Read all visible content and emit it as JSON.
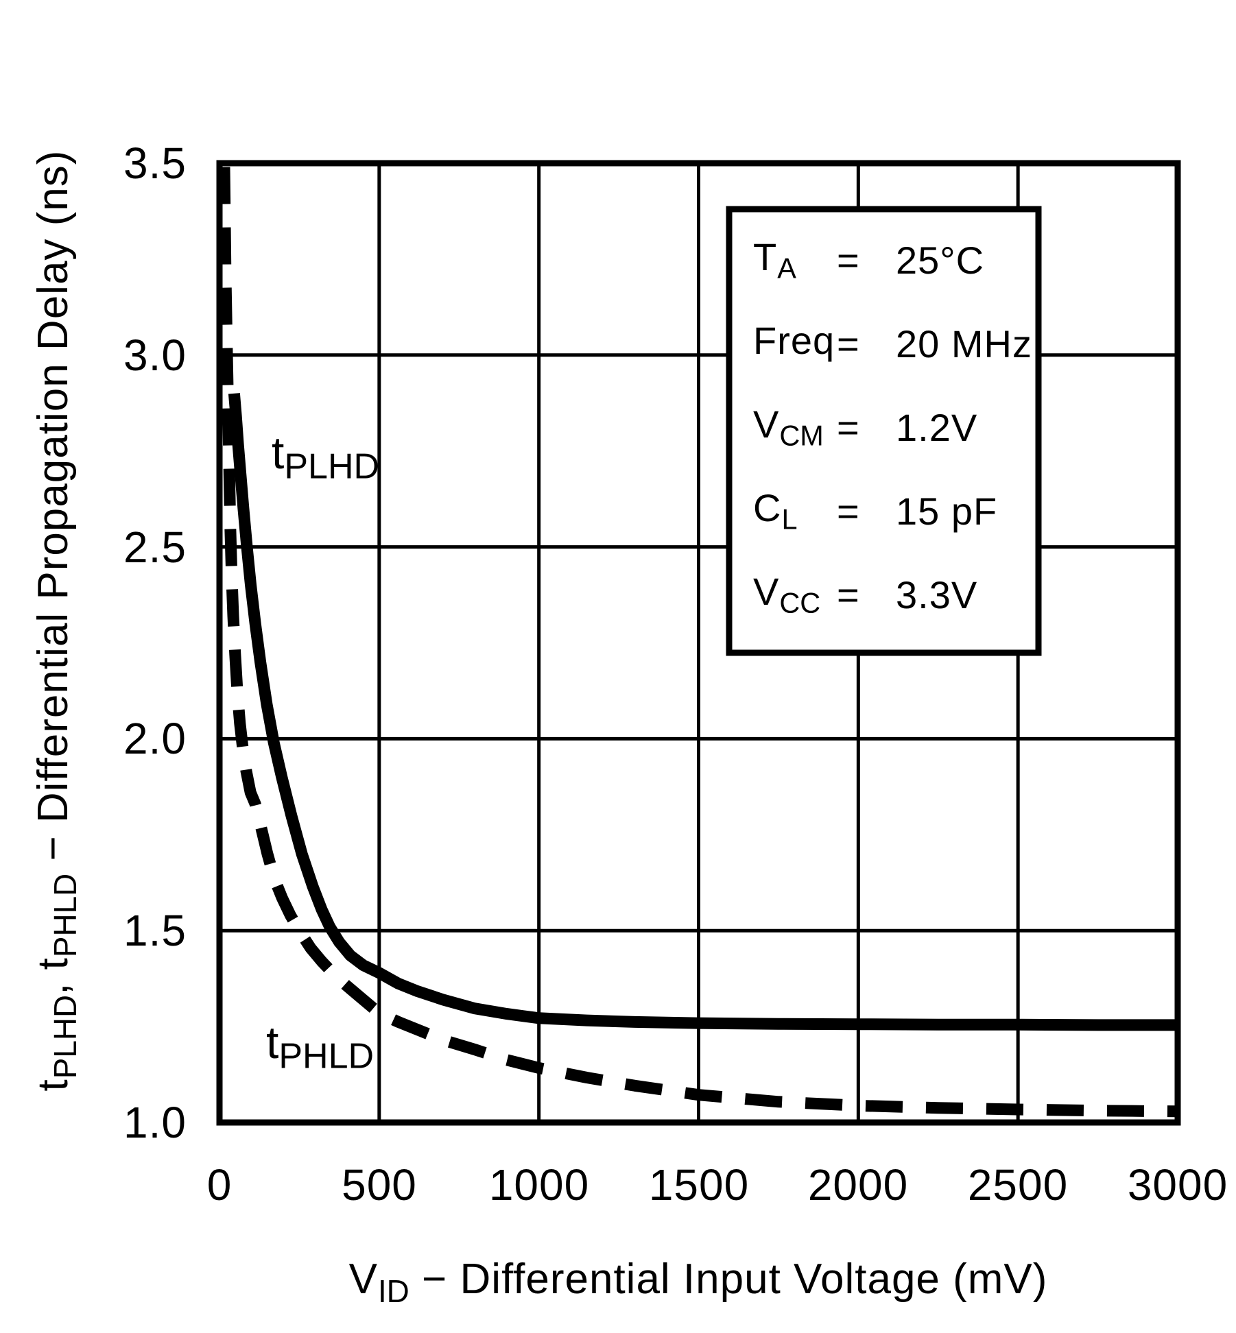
{
  "page": {
    "background": "#ffffff",
    "ink": "#000000"
  },
  "figure": {
    "y_axis": {
      "title": {
        "t1": "t",
        "s1": "PLHD",
        "mid": ", ",
        "t2": "t",
        "s2": "PHLD",
        "rest": " − Differential Propagation Delay (ns)"
      },
      "tick_labels": [
        "3.5",
        "3.0",
        "2.5",
        "2.0",
        "1.5",
        "1.0"
      ]
    },
    "x_axis": {
      "title": {
        "t1": "V",
        "s1": "ID",
        "rest": " − Differential Input Voltage (mV)"
      },
      "tick_labels": [
        "0",
        "500",
        "1000",
        "1500",
        "2000",
        "2500",
        "3000"
      ]
    },
    "curve_labels": [
      {
        "main": "t",
        "sub": "PLHD"
      },
      {
        "main": "t",
        "sub": "PHLD"
      }
    ],
    "conditions": [
      {
        "sym": "T",
        "sub": "A",
        "eq": "=",
        "val": "25°C"
      },
      {
        "sym": "Freq",
        "sub": "",
        "eq": "=",
        "val": "20 MHz"
      },
      {
        "sym": "V",
        "sub": "CM",
        "eq": "=",
        "val": "1.2V"
      },
      {
        "sym": "C",
        "sub": "L",
        "eq": "=",
        "val": "15 pF"
      },
      {
        "sym": "V",
        "sub": "CC",
        "eq": "=",
        "val": "3.3V"
      }
    ]
  },
  "chart_data": {
    "type": "line",
    "title": "",
    "xlabel": "VID − Differential Input Voltage (mV)",
    "ylabel": "tPLHD, tPHLD − Differential Propagation Delay (ns)",
    "xlim": [
      0,
      3000
    ],
    "ylim": [
      1.0,
      3.5
    ],
    "x_ticks": [
      0,
      500,
      1000,
      1500,
      2000,
      2500,
      3000
    ],
    "y_ticks": [
      1.0,
      1.5,
      2.0,
      2.5,
      3.0,
      3.5
    ],
    "grid": true,
    "legend_position": "on-curve",
    "conditions_note": [
      "TA = 25°C",
      "Freq = 20 MHz",
      "VCM = 1.2V",
      "CL = 15 pF",
      "VCC = 3.3V"
    ],
    "series": [
      {
        "name": "tPLHD",
        "line_style": "solid",
        "points": [
          [
            46,
            2.9
          ],
          [
            52,
            2.84
          ],
          [
            58,
            2.77
          ],
          [
            66,
            2.69
          ],
          [
            75,
            2.6
          ],
          [
            86,
            2.5
          ],
          [
            98,
            2.4
          ],
          [
            112,
            2.3
          ],
          [
            128,
            2.2
          ],
          [
            148,
            2.09
          ],
          [
            170,
            1.99
          ],
          [
            195,
            1.9
          ],
          [
            225,
            1.8
          ],
          [
            258,
            1.7
          ],
          [
            292,
            1.615
          ],
          [
            320,
            1.555
          ],
          [
            345,
            1.51
          ],
          [
            375,
            1.47
          ],
          [
            410,
            1.435
          ],
          [
            450,
            1.41
          ],
          [
            500,
            1.39
          ],
          [
            560,
            1.362
          ],
          [
            620,
            1.342
          ],
          [
            700,
            1.32
          ],
          [
            800,
            1.297
          ],
          [
            900,
            1.283
          ],
          [
            1000,
            1.272
          ],
          [
            1150,
            1.266
          ],
          [
            1300,
            1.262
          ],
          [
            1500,
            1.259
          ],
          [
            1750,
            1.257
          ],
          [
            2000,
            1.256
          ],
          [
            2250,
            1.255
          ],
          [
            2500,
            1.255
          ],
          [
            2750,
            1.254
          ],
          [
            3000,
            1.254
          ]
        ]
      },
      {
        "name": "tPHLD",
        "line_style": "dashed",
        "points": [
          [
            15,
            3.49
          ],
          [
            17,
            3.36
          ],
          [
            19,
            3.22
          ],
          [
            22,
            3.08
          ],
          [
            25,
            2.95
          ],
          [
            28,
            2.82
          ],
          [
            31,
            2.68
          ],
          [
            34,
            2.55
          ],
          [
            38,
            2.43
          ],
          [
            43,
            2.32
          ],
          [
            49,
            2.22
          ],
          [
            56,
            2.12
          ],
          [
            64,
            2.04
          ],
          [
            73,
            1.975
          ],
          [
            84,
            1.915
          ],
          [
            97,
            1.86
          ],
          [
            112,
            1.83
          ],
          [
            130,
            1.77
          ],
          [
            150,
            1.7
          ],
          [
            172,
            1.635
          ],
          [
            196,
            1.585
          ],
          [
            222,
            1.54
          ],
          [
            250,
            1.5
          ],
          [
            285,
            1.455
          ],
          [
            320,
            1.42
          ],
          [
            360,
            1.385
          ],
          [
            400,
            1.355
          ],
          [
            450,
            1.32
          ],
          [
            500,
            1.285
          ],
          [
            560,
            1.262
          ],
          [
            620,
            1.242
          ],
          [
            700,
            1.215
          ],
          [
            800,
            1.19
          ],
          [
            900,
            1.163
          ],
          [
            1000,
            1.142
          ],
          [
            1150,
            1.117
          ],
          [
            1300,
            1.096
          ],
          [
            1500,
            1.072
          ],
          [
            1750,
            1.054
          ],
          [
            2000,
            1.044
          ],
          [
            2250,
            1.038
          ],
          [
            2500,
            1.034
          ],
          [
            2750,
            1.031
          ],
          [
            3000,
            1.029
          ]
        ]
      }
    ]
  }
}
